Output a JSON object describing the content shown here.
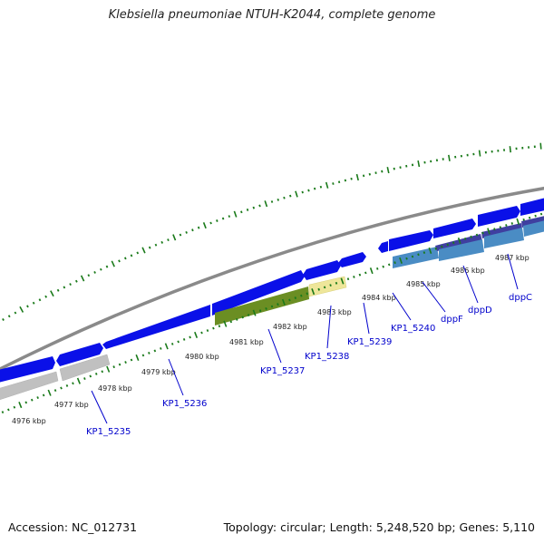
{
  "header": {
    "title": "Klebsiella pneumoniae NTUH-K2044, complete genome"
  },
  "footer": {
    "accession": "Accession: NC_012731",
    "summary": "Topology: circular; Length: 5,248,520 bp; Genes: 5,110"
  },
  "colors": {
    "backbone": "#8a8a8a",
    "forward_cds": "#0a10e8",
    "reverse_cds_gray": "#c0c0c0",
    "reverse_cds_green": "#6b8e23",
    "reverse_cds_yellow": "#eee69a",
    "reverse_cds_purple": "#3f3fa0",
    "reverse_cds_steel": "#4a8cc4",
    "tick": "#1a7a1a",
    "gene_label": "#0000cc"
  },
  "scale": {
    "tick_labels": [
      "4976 kbp",
      "4977 kbp",
      "4978 kbp",
      "4979 kbp",
      "4980 kbp",
      "4981 kbp",
      "4982 kbp",
      "4983 kbp",
      "4984 kbp",
      "4985 kbp",
      "4986 kbp",
      "4987 kbp"
    ]
  },
  "gene_labels": [
    "KP1_5235",
    "KP1_5236",
    "KP1_5237",
    "KP1_5238",
    "KP1_5239",
    "KP1_5240",
    "dppF",
    "dppD",
    "dppC"
  ]
}
